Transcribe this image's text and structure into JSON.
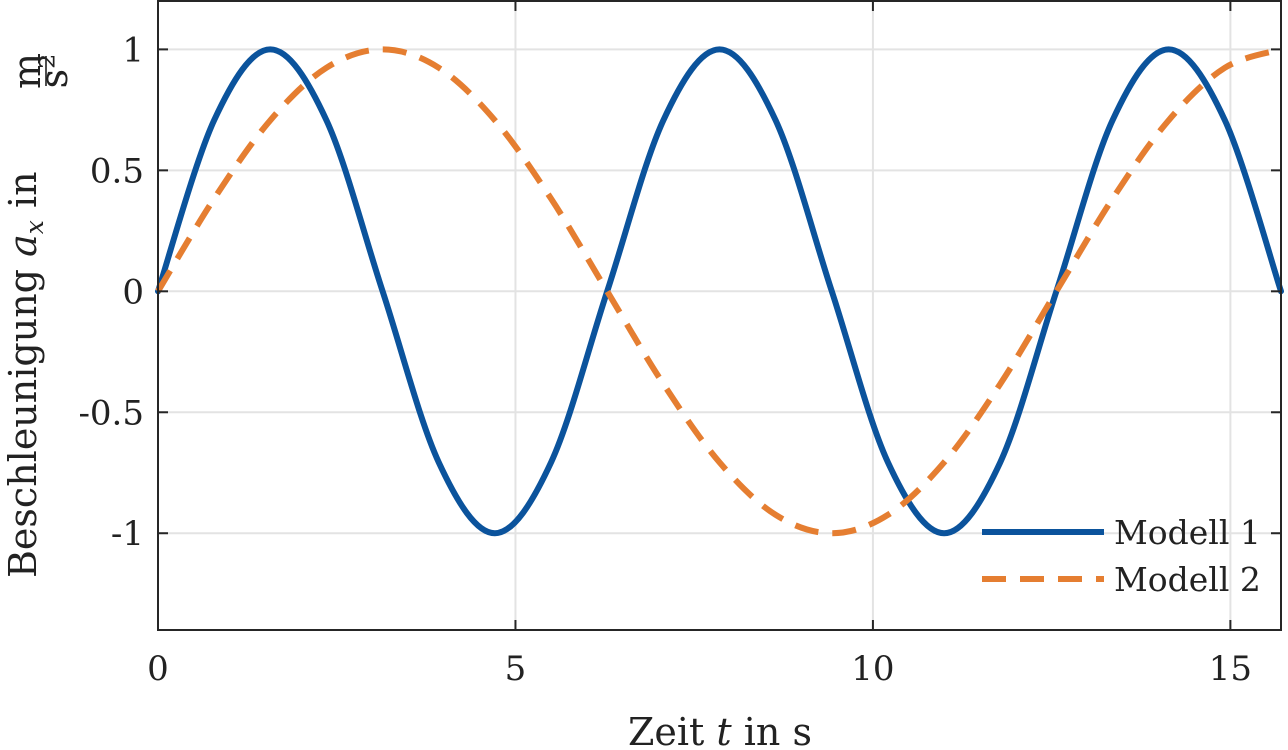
{
  "chart_data": {
    "type": "line",
    "xlabel_parts": {
      "pre": "Zeit ",
      "var": "t",
      "post": " in s"
    },
    "ylabel_parts": {
      "pre": "Beschleunigung ",
      "var": "a",
      "sub": "x",
      "mid": " in ",
      "num": "m",
      "den": "s²"
    },
    "xlim": [
      0,
      15.708
    ],
    "ylim": [
      -1.4,
      1.2
    ],
    "xticks": [
      0,
      5,
      10,
      15
    ],
    "xtick_labels": [
      "0",
      "5",
      "10",
      "15"
    ],
    "yticks": [
      1,
      0.5,
      0,
      -0.5,
      -1
    ],
    "ytick_labels": [
      "1",
      "0.5",
      "0",
      "-0.5",
      "-1"
    ],
    "grid": true,
    "legend_position": "bottom-right",
    "series": [
      {
        "name": "Modell 1",
        "style": "solid",
        "color": "#0b539c",
        "x": [
          0,
          0.785,
          1.571,
          2.356,
          3.142,
          3.927,
          4.712,
          5.498,
          6.283,
          7.069,
          7.854,
          8.639,
          9.425,
          10.21,
          10.996,
          11.781,
          12.566,
          13.352,
          14.137,
          14.923,
          15.708
        ],
        "y": [
          0,
          0.707,
          1,
          0.707,
          0,
          -0.707,
          -1,
          -0.707,
          0,
          0.707,
          1,
          0.707,
          0,
          -0.707,
          -1,
          -0.707,
          0,
          0.707,
          1,
          0.707,
          0
        ]
      },
      {
        "name": "Modell 2",
        "style": "dashed",
        "color": "#e57e31",
        "x": [
          0,
          0.785,
          1.571,
          2.356,
          3.142,
          3.927,
          4.712,
          5.498,
          6.283,
          7.069,
          7.854,
          8.639,
          9.425,
          10.21,
          10.996,
          11.781,
          12.566,
          13.352,
          14.137,
          14.923,
          15.708
        ],
        "y": [
          0,
          0.383,
          0.707,
          0.924,
          1,
          0.924,
          0.707,
          0.383,
          0,
          -0.383,
          -0.707,
          -0.924,
          -1,
          -0.924,
          -0.707,
          -0.383,
          0,
          0.383,
          0.707,
          0.924,
          1
        ]
      }
    ]
  }
}
